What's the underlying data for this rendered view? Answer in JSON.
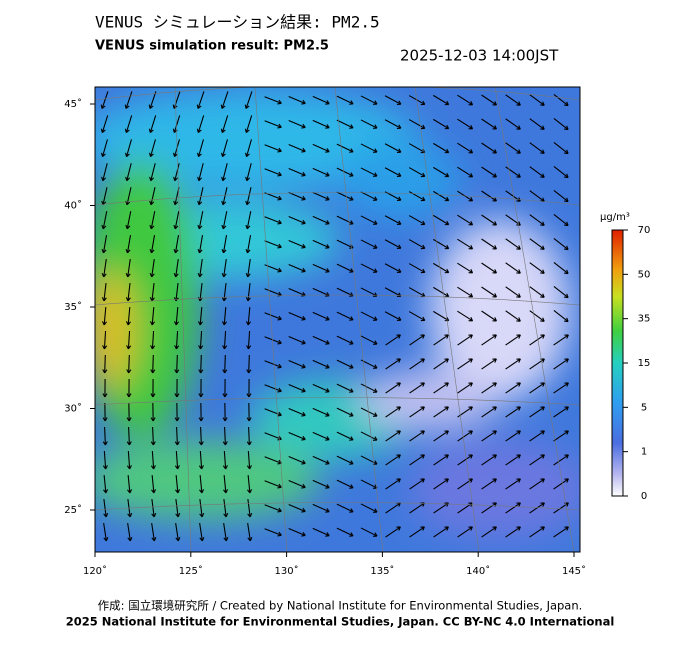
{
  "header": {
    "title": "VENUS シミュレーション結果: PM2.5",
    "subtitle": "VENUS simulation result: PM2.5",
    "timestamp": "2025-12-03 14:00JST"
  },
  "map": {
    "lon_ticks": [
      {
        "value": 120,
        "label": "120˚"
      },
      {
        "value": 125,
        "label": "125˚"
      },
      {
        "value": 130,
        "label": "130˚"
      },
      {
        "value": 135,
        "label": "135˚"
      },
      {
        "value": 140,
        "label": "140˚"
      },
      {
        "value": 145,
        "label": "145˚"
      }
    ],
    "lat_ticks": [
      {
        "value": 45,
        "label": "45˚"
      },
      {
        "value": 40,
        "label": "40˚"
      },
      {
        "value": 35,
        "label": "35˚"
      },
      {
        "value": 30,
        "label": "30˚"
      },
      {
        "value": 25,
        "label": "25˚"
      }
    ]
  },
  "colorbar": {
    "unit": "µg/m³",
    "ticks": [
      70,
      50,
      35,
      15,
      5,
      1,
      0
    ]
  },
  "footer": {
    "credit": "作成: 国立環境研究所 / Created by National Institute for Environmental Studies, Japan.",
    "copyright": "2025 National Institute for Environmental Studies, Japan. CC BY-NC 4.0 International"
  }
}
